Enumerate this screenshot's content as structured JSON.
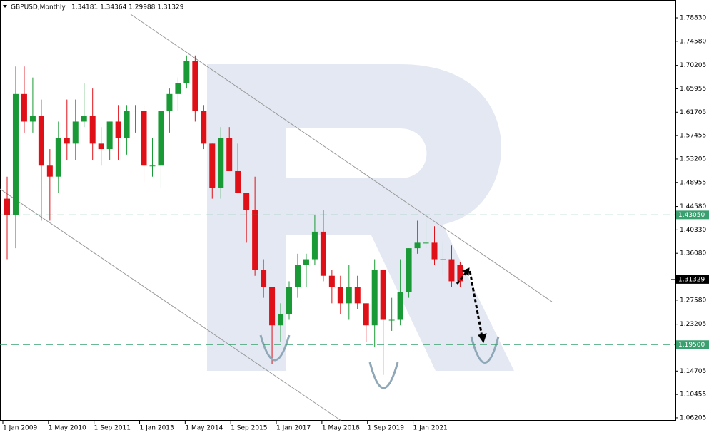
{
  "chart_data": {
    "type": "candlestick",
    "title": "GBPUSD,Monthly",
    "quote": "1.34181 1.34364 1.29988 1.31329",
    "x": [
      "2009-01",
      "2009-04",
      "2009-07",
      "2009-10",
      "2010-01",
      "2010-04",
      "2010-07",
      "2010-10",
      "2011-01",
      "2011-04",
      "2011-07",
      "2011-10",
      "2012-01",
      "2012-04",
      "2012-07",
      "2012-10",
      "2013-01",
      "2013-04",
      "2013-07",
      "2013-10",
      "2014-01",
      "2014-04",
      "2014-07",
      "2014-10",
      "2015-01",
      "2015-04",
      "2015-07",
      "2015-10",
      "2016-01",
      "2016-04",
      "2016-07",
      "2016-10",
      "2017-01",
      "2017-04",
      "2017-07",
      "2017-10",
      "2018-01",
      "2018-04",
      "2018-07",
      "2018-10",
      "2019-01",
      "2019-04",
      "2019-07",
      "2019-10",
      "2020-01",
      "2020-04",
      "2020-07",
      "2020-10",
      "2021-01",
      "2021-04",
      "2021-07",
      "2021-10",
      "2022-01",
      "2022-04"
    ],
    "open": [
      1.46,
      1.43,
      1.65,
      1.6,
      1.61,
      1.52,
      1.5,
      1.57,
      1.56,
      1.6,
      1.61,
      1.56,
      1.55,
      1.6,
      1.57,
      1.62,
      1.62,
      1.52,
      1.52,
      1.62,
      1.65,
      1.67,
      1.71,
      1.62,
      1.56,
      1.48,
      1.57,
      1.51,
      1.47,
      1.44,
      1.33,
      1.3,
      1.23,
      1.25,
      1.3,
      1.34,
      1.35,
      1.4,
      1.32,
      1.3,
      1.27,
      1.3,
      1.27,
      1.23,
      1.33,
      1.24,
      1.24,
      1.29,
      1.37,
      1.38,
      1.38,
      1.35,
      1.35,
      1.34
    ],
    "high": [
      1.5,
      1.7,
      1.7,
      1.68,
      1.64,
      1.55,
      1.6,
      1.64,
      1.64,
      1.67,
      1.66,
      1.59,
      1.6,
      1.63,
      1.63,
      1.63,
      1.63,
      1.57,
      1.62,
      1.66,
      1.68,
      1.72,
      1.72,
      1.63,
      1.56,
      1.59,
      1.59,
      1.56,
      1.47,
      1.5,
      1.35,
      1.3,
      1.27,
      1.31,
      1.36,
      1.36,
      1.43,
      1.44,
      1.33,
      1.32,
      1.34,
      1.32,
      1.27,
      1.35,
      1.33,
      1.28,
      1.35,
      1.37,
      1.42,
      1.425,
      1.41,
      1.38,
      1.375,
      1.345
    ],
    "low": [
      1.35,
      1.37,
      1.58,
      1.58,
      1.42,
      1.42,
      1.47,
      1.53,
      1.53,
      1.59,
      1.53,
      1.52,
      1.53,
      1.53,
      1.54,
      1.58,
      1.49,
      1.5,
      1.48,
      1.58,
      1.62,
      1.66,
      1.6,
      1.55,
      1.46,
      1.46,
      1.51,
      1.47,
      1.38,
      1.32,
      1.28,
      1.16,
      1.2,
      1.24,
      1.28,
      1.3,
      1.34,
      1.31,
      1.27,
      1.25,
      1.24,
      1.26,
      1.2,
      1.19,
      1.14,
      1.22,
      1.23,
      1.28,
      1.36,
      1.37,
      1.34,
      1.32,
      1.3,
      1.3
    ],
    "close": [
      1.43,
      1.65,
      1.6,
      1.61,
      1.52,
      1.5,
      1.57,
      1.56,
      1.6,
      1.61,
      1.56,
      1.55,
      1.6,
      1.57,
      1.62,
      1.62,
      1.52,
      1.52,
      1.62,
      1.65,
      1.67,
      1.71,
      1.62,
      1.56,
      1.48,
      1.57,
      1.51,
      1.47,
      1.44,
      1.33,
      1.3,
      1.23,
      1.25,
      1.3,
      1.34,
      1.35,
      1.4,
      1.32,
      1.3,
      1.27,
      1.3,
      1.27,
      1.23,
      1.33,
      1.24,
      1.24,
      1.29,
      1.37,
      1.38,
      1.38,
      1.35,
      1.35,
      1.31,
      1.31
    ],
    "up_color": "#1a9a36",
    "down_color": "#e01018",
    "ylim": [
      1.0568,
      1.8207
    ],
    "yticks": [
      {
        "value": 1.7883,
        "label": "1.78830"
      },
      {
        "value": 1.7458,
        "label": "1.74580"
      },
      {
        "value": 1.70205,
        "label": "1.70205"
      },
      {
        "value": 1.65955,
        "label": "1.65955"
      },
      {
        "value": 1.61705,
        "label": "1.61705"
      },
      {
        "value": 1.57455,
        "label": "1.57455"
      },
      {
        "value": 1.53205,
        "label": "1.53205"
      },
      {
        "value": 1.48955,
        "label": "1.48955"
      },
      {
        "value": 1.4458,
        "label": "1.44580"
      },
      {
        "value": 1.4033,
        "label": "1.40330"
      },
      {
        "value": 1.3608,
        "label": "1.36080"
      },
      {
        "value": 1.2758,
        "label": "1.27580"
      },
      {
        "value": 1.23205,
        "label": "1.23205"
      },
      {
        "value": 1.14705,
        "label": "1.14705"
      },
      {
        "value": 1.10455,
        "label": "1.10455"
      },
      {
        "value": 1.06205,
        "label": "1.06205"
      }
    ],
    "xticks": [
      {
        "value": "2009-01",
        "label": "1 Jan 2009"
      },
      {
        "value": "2010-05",
        "label": "1 May 2010"
      },
      {
        "value": "2011-09",
        "label": "1 Sep 2011"
      },
      {
        "value": "2013-01",
        "label": "1 Jan 2013"
      },
      {
        "value": "2014-05",
        "label": "1 May 2014"
      },
      {
        "value": "2015-09",
        "label": "1 Sep 2015"
      },
      {
        "value": "2017-01",
        "label": "1 Jan 2017"
      },
      {
        "value": "2018-05",
        "label": "1 May 2018"
      },
      {
        "value": "2019-09",
        "label": "1 Sep 2019"
      },
      {
        "value": "2021-01",
        "label": "1 Jan 2021"
      }
    ],
    "levels": [
      {
        "value": 1.4305,
        "label": "1.43050"
      },
      {
        "value": 1.195,
        "label": "1.19500"
      }
    ],
    "level_color": "#3aa070",
    "price": {
      "value": 1.31329,
      "label": "1.31329"
    }
  }
}
